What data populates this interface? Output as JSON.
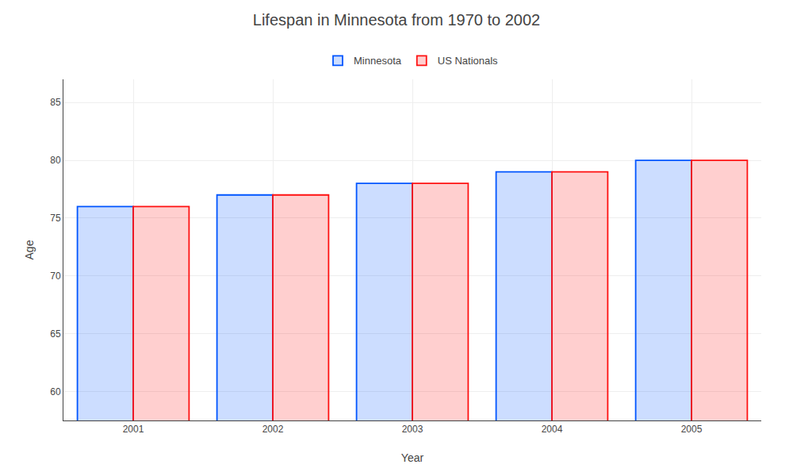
{
  "chart_data": {
    "type": "bar",
    "title": "Lifespan in Minnesota from 1970 to 2002",
    "xlabel": "Year",
    "ylabel": "Age",
    "categories": [
      "2001",
      "2002",
      "2003",
      "2004",
      "2005"
    ],
    "series": [
      {
        "name": "Minnesota",
        "color": "#0055ff",
        "values": [
          76,
          77,
          78,
          79,
          80
        ]
      },
      {
        "name": "US Nationals",
        "color": "#ff1111",
        "values": [
          76,
          77,
          78,
          79,
          80
        ]
      }
    ],
    "ylim": [
      57.5,
      87
    ],
    "yticks": [
      60,
      65,
      70,
      75,
      80,
      85
    ],
    "grid": true,
    "legend": "upper center"
  }
}
